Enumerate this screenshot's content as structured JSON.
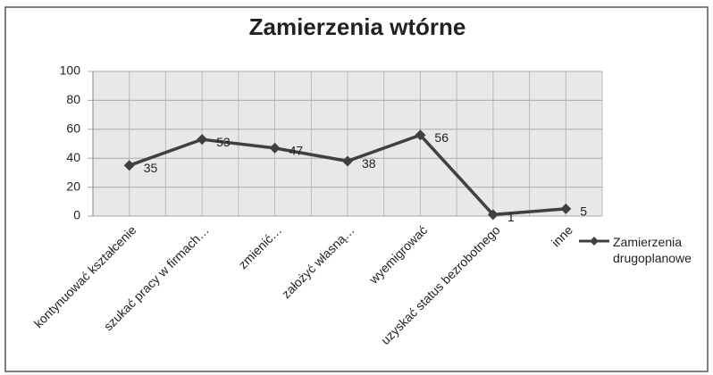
{
  "chart_data": {
    "type": "line",
    "title": "Zamierzenia wtórne",
    "categories": [
      "kontynuować kształcenie",
      "szukać pracy w firmach…",
      "zmienić…",
      "założyć własną…",
      "wyemigrować",
      "uzyskać status bezrobotnego",
      "inne"
    ],
    "series": [
      {
        "name": "Zamierzenia drugoplanowe",
        "color": "#404040",
        "values": [
          35,
          53,
          47,
          38,
          56,
          1,
          5
        ]
      }
    ],
    "ylim": [
      0,
      100
    ],
    "yticks": [
      0,
      20,
      40,
      60,
      80,
      100
    ],
    "grid": true,
    "legend": "right"
  }
}
